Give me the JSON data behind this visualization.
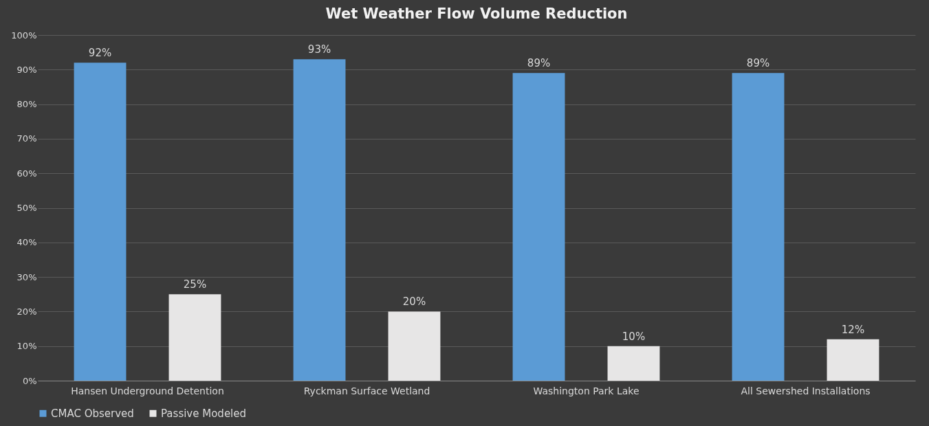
{
  "chart_data": {
    "type": "bar",
    "title": "Wet Weather Flow Volume Reduction",
    "categories": [
      "Hansen Underground Detention",
      "Ryckman Surface Wetland",
      "Washington Park Lake",
      "All Sewershed Installations"
    ],
    "series": [
      {
        "name": "CMAC Observed",
        "color": "#5b9bd5",
        "values": [
          92,
          93,
          89,
          89
        ],
        "value_labels": [
          "92%",
          "93%",
          "89%",
          "89%"
        ]
      },
      {
        "name": "Passive Modeled",
        "color": "#e7e6e6",
        "values": [
          25,
          20,
          10,
          12
        ],
        "value_labels": [
          "25%",
          "20%",
          "10%",
          "12%"
        ]
      }
    ],
    "ylim": [
      0,
      100
    ],
    "yticks": [
      {
        "value": 0,
        "label": "0%"
      },
      {
        "value": 10,
        "label": "10%"
      },
      {
        "value": 20,
        "label": "20%"
      },
      {
        "value": 30,
        "label": "30%"
      },
      {
        "value": 40,
        "label": "40%"
      },
      {
        "value": 50,
        "label": "50%"
      },
      {
        "value": 60,
        "label": "60%"
      },
      {
        "value": 70,
        "label": "70%"
      },
      {
        "value": 80,
        "label": "80%"
      },
      {
        "value": 90,
        "label": "90%"
      },
      {
        "value": 100,
        "label": "100%"
      }
    ],
    "grid": "y",
    "legend": "bottom"
  }
}
